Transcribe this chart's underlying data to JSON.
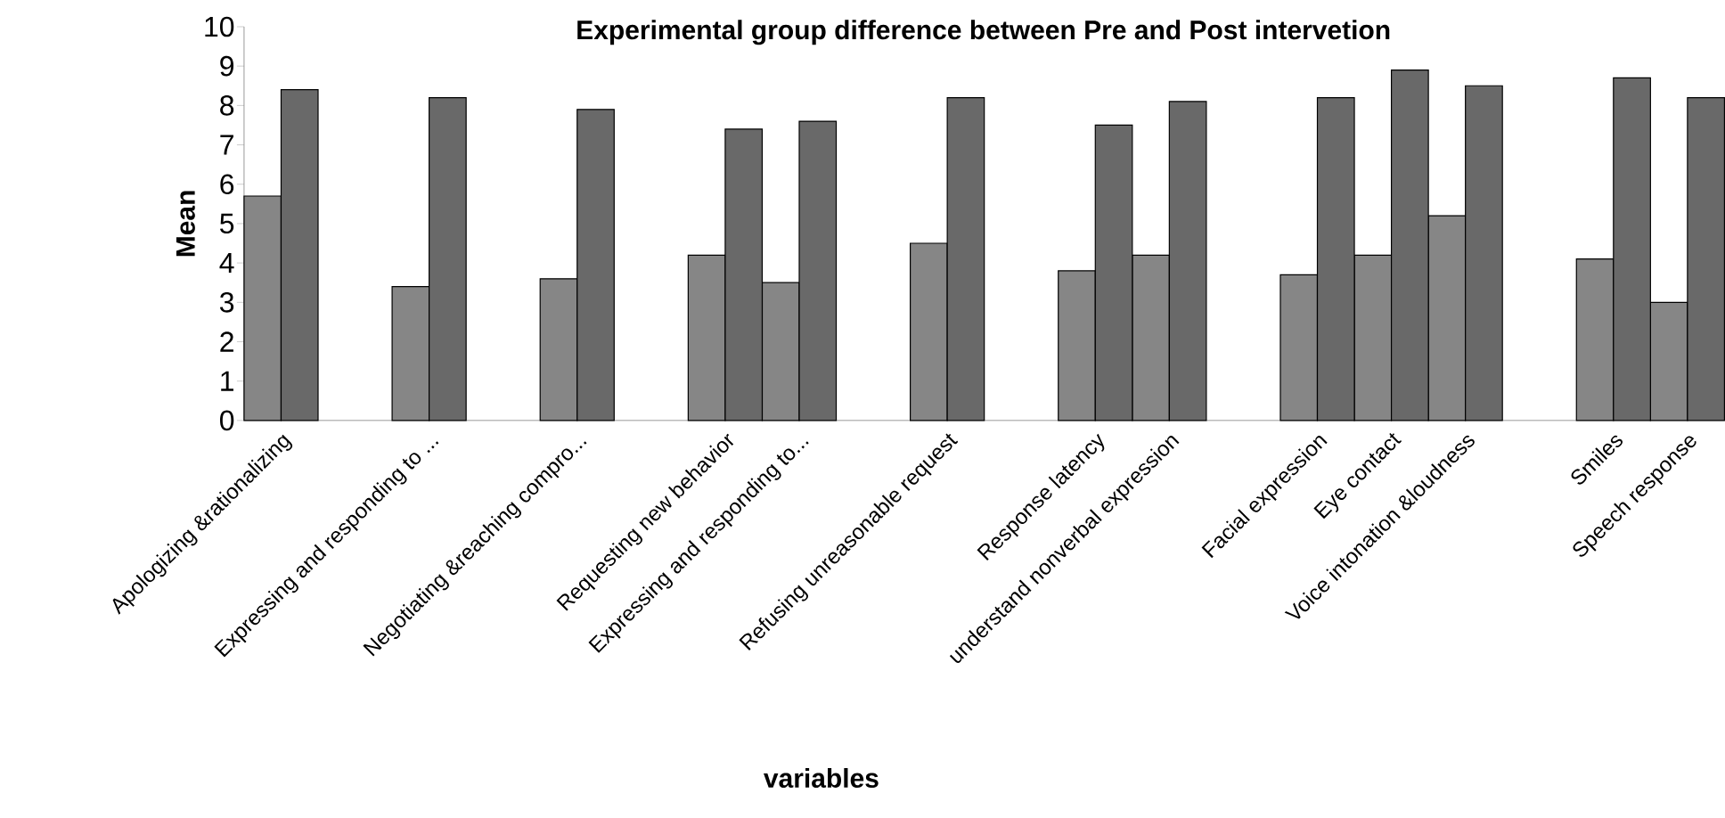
{
  "chart_data": {
    "type": "bar",
    "title": "Experimental group difference between Pre and Post intervetion",
    "xlabel": "variables",
    "ylabel": "Mean",
    "categories": [
      "Apologizing &rationalizing",
      null,
      "Expressing and responding to ...",
      null,
      "Negotiating &reaching compro...",
      null,
      "Requesting new behavior",
      "Expressing and responding to...",
      null,
      "Refusing unreasonable request",
      null,
      "Response latency",
      "understand nonverbal expression",
      null,
      "Facial expression",
      "Eye contact",
      "Voice intonation &loudness",
      null,
      "Smiles",
      "Speech response"
    ],
    "series": [
      {
        "color": "#868686",
        "values": [
          5.7,
          null,
          3.4,
          null,
          3.6,
          null,
          4.2,
          3.5,
          null,
          4.5,
          null,
          3.8,
          4.2,
          null,
          3.7,
          4.2,
          5.2,
          null,
          4.1,
          3.0
        ]
      },
      {
        "color": "#696969",
        "values": [
          8.4,
          null,
          8.2,
          null,
          7.9,
          null,
          7.4,
          7.6,
          null,
          8.2,
          null,
          7.5,
          8.1,
          null,
          8.2,
          8.9,
          8.5,
          null,
          8.7,
          8.2
        ]
      }
    ],
    "ylim": [
      0,
      10
    ],
    "yticks": [
      0,
      1,
      2,
      3,
      4,
      5,
      6,
      7,
      8,
      9,
      10
    ],
    "grid": false
  }
}
